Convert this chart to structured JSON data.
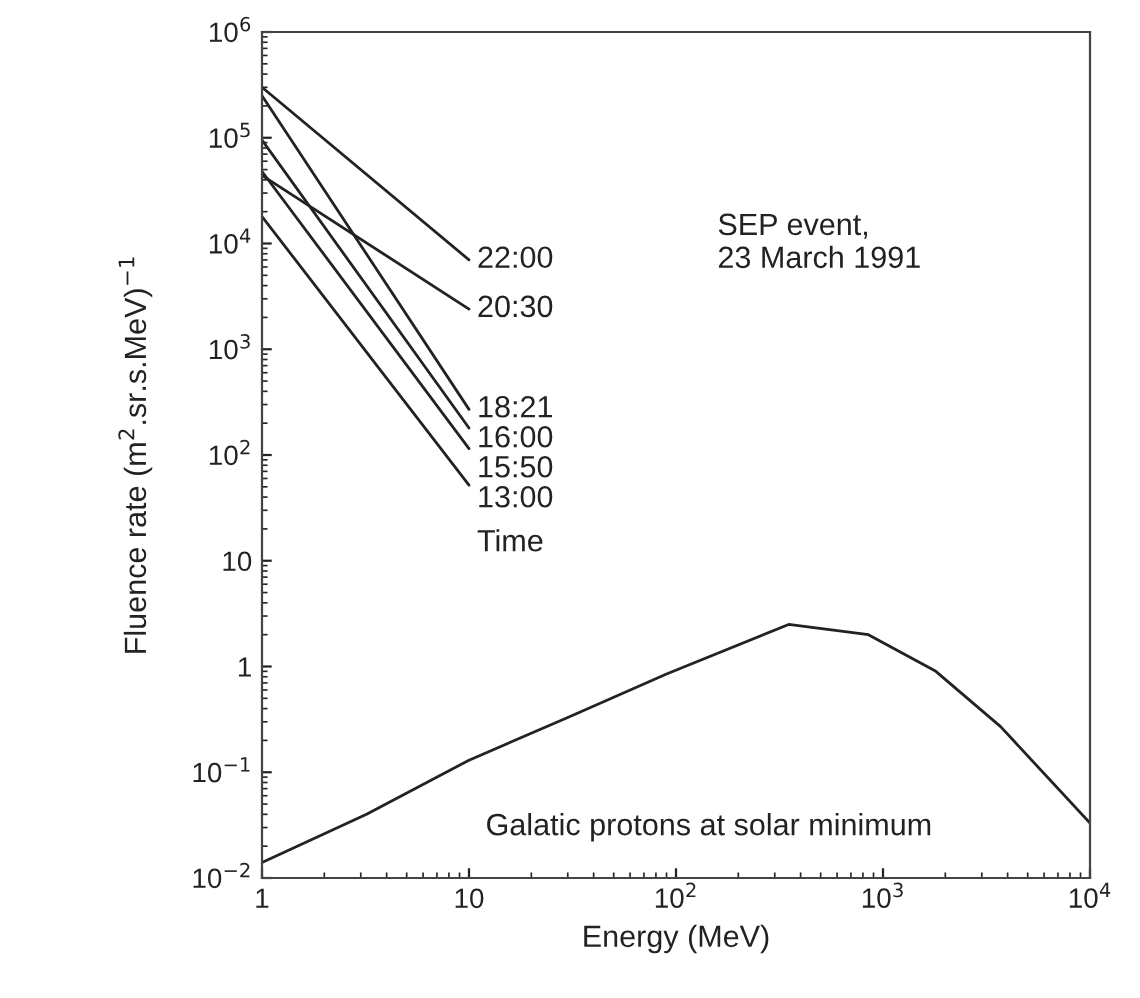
{
  "chart_data": {
    "type": "line",
    "xlabel": "Energy (MeV)",
    "ylabel": "Fluence rate (m$^{2}$.sr.s.MeV)$^{−1}$",
    "log": "xy",
    "grid": false,
    "legend": false,
    "xlim": [
      1,
      10000
    ],
    "ylim": [
      0.01,
      1000000
    ],
    "xticks": [
      {
        "value": 1,
        "label": "1"
      },
      {
        "value": 10,
        "label": "10"
      },
      {
        "value": 100,
        "label": "10$^{2}$"
      },
      {
        "value": 1000,
        "label": "10$^{3}$"
      },
      {
        "value": 10000,
        "label": "10$^{4}$"
      }
    ],
    "yticks": [
      {
        "value": 0.01,
        "label": "10$^{−2}$"
      },
      {
        "value": 0.1,
        "label": "10$^{−1}$"
      },
      {
        "value": 1,
        "label": "1"
      },
      {
        "value": 10,
        "label": "10"
      },
      {
        "value": 100,
        "label": "10$^{2}$"
      },
      {
        "value": 1000,
        "label": "10$^{3}$"
      },
      {
        "value": 10000,
        "label": "10$^{4}$"
      },
      {
        "value": 100000,
        "label": "10$^{5}$"
      },
      {
        "value": 1000000,
        "label": "10$^{6}$"
      }
    ],
    "series": [
      {
        "name": "22:00",
        "color": "#222222",
        "x": [
          1,
          10
        ],
        "values": [
          300000,
          7000
        ]
      },
      {
        "name": "20:30",
        "color": "#222222",
        "x": [
          1,
          10
        ],
        "values": [
          44000,
          2400
        ]
      },
      {
        "name": "18:21",
        "color": "#222222",
        "x": [
          1,
          10
        ],
        "values": [
          250000,
          270
        ]
      },
      {
        "name": "16:00",
        "color": "#222222",
        "x": [
          1,
          10
        ],
        "values": [
          95000,
          180
        ]
      },
      {
        "name": "15:50",
        "color": "#222222",
        "x": [
          1,
          10
        ],
        "values": [
          48000,
          115
        ]
      },
      {
        "name": "13:00",
        "color": "#222222",
        "x": [
          1,
          10
        ],
        "values": [
          18000,
          52
        ]
      },
      {
        "name": "Galatic protons at solar minimum",
        "color": "#222222",
        "x": [
          1,
          3.2,
          10,
          30,
          90,
          350,
          850,
          1800,
          3700,
          10000
        ],
        "values": [
          0.014,
          0.04,
          0.13,
          0.33,
          0.85,
          2.5,
          2.0,
          0.9,
          0.27,
          0.033
        ]
      }
    ],
    "annotations": [
      "Time",
      "SEP event,\n23 March 1991"
    ]
  }
}
